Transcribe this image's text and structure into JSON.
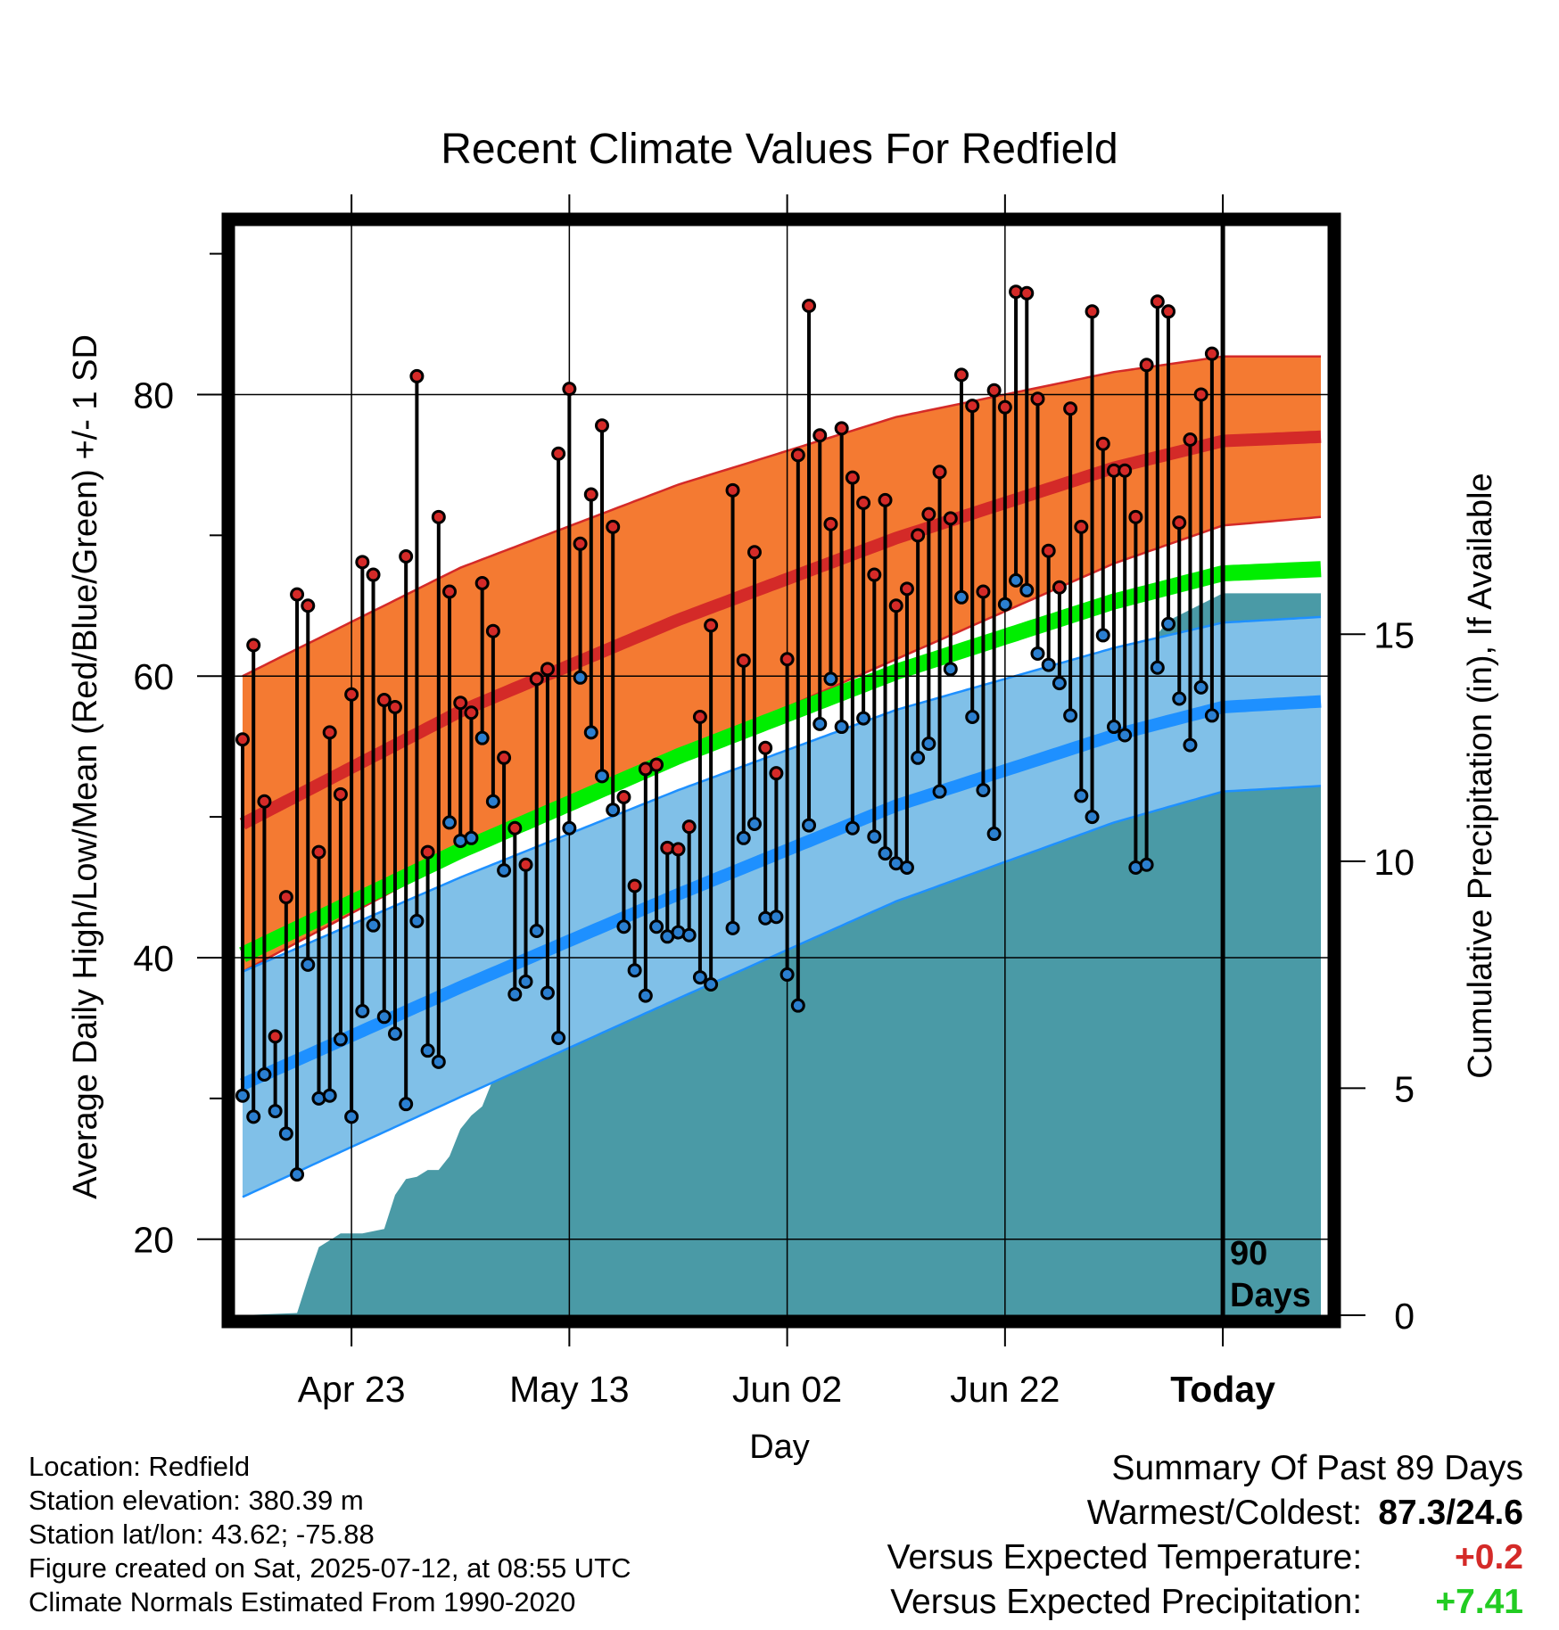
{
  "chart_data": {
    "type": "line",
    "title": "Recent Climate Values For Redfield",
    "xlabel": "Day",
    "ylabel": "Average Daily High/Low/Mean (Red/Blue/Green) +/- 1 SD",
    "y2label": "Cumulative Precipitation (in), If Available",
    "x_tick_labels": [
      "Apr 23",
      "May 13",
      "Jun 02",
      "Jun 22",
      "Today"
    ],
    "y_tick_labels": [
      "20",
      "40",
      "60",
      "80"
    ],
    "y2_tick_labels": [
      "0",
      "5",
      "10",
      "15"
    ],
    "ylim": [
      14.6,
      92
    ],
    "y2lim": [
      0,
      24
    ],
    "day_range": [
      -90,
      9
    ],
    "grid": true,
    "today_label": [
      "90",
      "Days"
    ],
    "colors": {
      "high_band": "#f47a32",
      "high_mean": "#d42a28",
      "low_band": "#80c0e8",
      "low_mean": "#1e90ff",
      "mean": "#00ee00",
      "precip": "#4a9aa6",
      "high_dot": "#d42a28",
      "low_dot": "#2b7fd0"
    },
    "normals": {
      "days": [
        -90,
        -70,
        -50,
        -30,
        -10,
        0,
        9
      ],
      "high_mean": [
        49.5,
        57.5,
        64.0,
        69.8,
        74.8,
        76.7,
        77.0
      ],
      "high_sd": [
        10.5,
        10.2,
        9.6,
        8.6,
        6.8,
        6.0,
        5.7
      ],
      "low_mean": [
        31.0,
        37.9,
        44.5,
        50.8,
        55.8,
        57.8,
        58.2
      ],
      "low_sd": [
        8.0,
        7.8,
        7.4,
        6.8,
        6.2,
        6.0,
        6.0
      ],
      "mean": [
        40.2,
        47.6,
        54.3,
        60.3,
        65.3,
        67.3,
        67.6
      ]
    },
    "observations": {
      "days": [
        -90,
        -89,
        -88,
        -87,
        -86,
        -85,
        -84,
        -83,
        -82,
        -81,
        -80,
        -79,
        -78,
        -77,
        -76,
        -75,
        -74,
        -73,
        -72,
        -71,
        -70,
        -69,
        -68,
        -67,
        -66,
        -65,
        -64,
        -63,
        -62,
        -61,
        -60,
        -59,
        -58,
        -57,
        -56,
        -55,
        -54,
        -53,
        -52,
        -51,
        -50,
        -49,
        -48,
        -47,
        -46,
        -45,
        -44,
        -43,
        -42,
        -41,
        -40,
        -39,
        -38,
        -37,
        -36,
        -35,
        -34,
        -33,
        -32,
        -31,
        -30,
        -29,
        -28,
        -27,
        -26,
        -25,
        -24,
        -23,
        -22,
        -21,
        -20,
        -19,
        -18,
        -17,
        -16,
        -15,
        -14,
        -13,
        -12,
        -11,
        -10,
        -9,
        -8,
        -7,
        -6,
        -5,
        -4,
        -3,
        -2,
        -1
      ],
      "high": [
        55.5,
        62.2,
        51.1,
        34.4,
        44.3,
        65.8,
        65.0,
        47.5,
        56.0,
        51.6,
        58.7,
        68.1,
        67.2,
        58.3,
        57.8,
        68.5,
        81.3,
        47.5,
        71.3,
        66.0,
        58.1,
        57.4,
        66.6,
        63.2,
        54.2,
        49.2,
        46.6,
        59.8,
        60.5,
        75.8,
        80.4,
        69.4,
        72.9,
        77.8,
        70.6,
        51.4,
        45.1,
        53.4,
        53.7,
        47.8,
        47.7,
        49.3,
        57.1,
        63.6,
        null,
        73.2,
        61.1,
        68.8,
        54.9,
        53.1,
        61.2,
        75.7,
        86.3,
        77.1,
        70.8,
        77.6,
        74.1,
        72.3,
        67.2,
        72.5,
        65.0,
        66.2,
        70.0,
        71.5,
        74.5,
        71.2,
        81.4,
        79.2,
        66.0,
        80.3,
        79.1,
        87.3,
        87.2,
        79.7,
        68.9,
        66.3,
        79.0,
        70.6,
        85.9,
        76.5,
        74.6,
        74.6,
        71.3,
        82.1,
        86.6,
        85.9,
        70.9,
        76.8,
        80.0,
        82.9
      ],
      "low": [
        30.2,
        28.7,
        31.7,
        29.1,
        27.5,
        24.6,
        39.5,
        30.0,
        30.2,
        34.2,
        28.7,
        36.2,
        42.3,
        35.8,
        34.6,
        29.6,
        42.6,
        33.4,
        32.6,
        49.6,
        48.3,
        48.5,
        55.6,
        51.1,
        46.2,
        37.4,
        38.3,
        41.9,
        37.5,
        34.3,
        49.2,
        59.9,
        56.0,
        52.9,
        50.5,
        42.2,
        39.1,
        37.3,
        42.2,
        41.5,
        41.8,
        41.6,
        38.6,
        38.1,
        null,
        42.1,
        48.5,
        49.5,
        42.8,
        42.9,
        38.8,
        36.6,
        49.4,
        56.6,
        59.8,
        56.4,
        49.2,
        57.0,
        48.6,
        47.4,
        46.7,
        46.4,
        54.2,
        55.2,
        51.8,
        60.5,
        65.6,
        57.1,
        51.9,
        48.8,
        65.1,
        66.8,
        66.1,
        61.6,
        60.8,
        59.5,
        57.2,
        51.5,
        50.0,
        62.9,
        56.4,
        55.8,
        46.4,
        46.6,
        60.6,
        63.7,
        58.4,
        55.1,
        59.2,
        57.2
      ]
    },
    "precip": {
      "days": [
        -90,
        -85,
        -84,
        -83,
        -82,
        -81,
        -79,
        -77,
        -76,
        -75,
        -74,
        -73,
        -72,
        -71,
        -70,
        -69,
        -68,
        -67,
        -66,
        -65,
        -64,
        -63,
        -62,
        -60,
        -58,
        -57,
        -55,
        -53,
        -52,
        -51,
        -50,
        -49,
        -48,
        -47,
        -45,
        -44,
        -43,
        -42,
        -41,
        -39,
        -37,
        -35,
        -34,
        -33,
        -32,
        -30,
        -28,
        -27,
        -26,
        -25,
        -24,
        -23,
        -22,
        -21,
        -20,
        -19,
        -17,
        -15,
        -14,
        -13,
        -12,
        -11,
        -10,
        -9,
        -8,
        -7,
        -6,
        -5,
        0,
        9
      ],
      "cum": [
        0,
        0.05,
        0.8,
        1.5,
        1.65,
        1.8,
        1.8,
        1.9,
        2.65,
        3.0,
        3.05,
        3.2,
        3.2,
        3.5,
        4.1,
        4.4,
        4.6,
        5.2,
        6.4,
        6.5,
        6.6,
        7.1,
        7.2,
        7.2,
        7.2,
        7.2,
        8.2,
        9.1,
        9.2,
        9.2,
        9.3,
        9.7,
        10.0,
        10.1,
        10.1,
        10.1,
        10.1,
        10.4,
        10.4,
        10.6,
        10.6,
        10.6,
        10.6,
        10.8,
        10.8,
        10.8,
        12.9,
        13.0,
        13.0,
        13.0,
        13.0,
        13.0,
        13.1,
        13.1,
        13.1,
        13.1,
        13.6,
        14.2,
        14.2,
        14.2,
        14.2,
        14.3,
        14.3,
        14.5,
        14.5,
        14.6,
        15.0,
        15.3,
        15.9,
        15.9
      ]
    }
  },
  "info": {
    "location": "Location: Redfield",
    "elevation": "Station elevation: 380.39 m",
    "latlon": "Station lat/lon: 43.62; -75.88",
    "created": "Figure created on Sat, 2025-07-12, at 08:55 UTC",
    "normals": "Climate Normals Estimated From 1990-2020"
  },
  "summary": {
    "title": "Summary Of Past 89 Days",
    "warm_cold_label": "Warmest/Coldest:",
    "warm_cold_value": "87.3/24.6",
    "temp_label": "Versus Expected Temperature:",
    "temp_value": "+0.2",
    "temp_color": "#d42a28",
    "precip_label": "Versus Expected Precipitation:",
    "precip_value": "+7.41",
    "precip_color": "#22cc22"
  }
}
